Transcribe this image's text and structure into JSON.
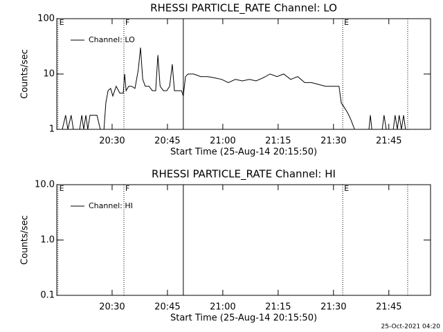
{
  "chart_data": [
    {
      "type": "line",
      "title": "RHESSI PARTICLE_RATE Channel: LO",
      "xlabel": "Start Time (25-Aug-14 20:15:50)",
      "ylabel": "Counts/sec",
      "ylog": true,
      "xlim": [
        15,
        116.3
      ],
      "xticks": [
        {
          "value": 30,
          "label": "20:30"
        },
        {
          "value": 45,
          "label": "20:45"
        },
        {
          "value": 60,
          "label": "21:00"
        },
        {
          "value": 75,
          "label": "21:15"
        },
        {
          "value": 90,
          "label": "21:30"
        },
        {
          "value": 105,
          "label": "21:45"
        }
      ],
      "ylim": [
        1,
        100
      ],
      "yticks": [
        1,
        10,
        100
      ],
      "vlines": [
        {
          "x": 15.3,
          "label": "E",
          "style": "dotted"
        },
        {
          "x": 33.2,
          "label": "F",
          "style": "dotted"
        },
        {
          "x": 49.3,
          "style": "solid"
        },
        {
          "x": 92.5,
          "label": "E",
          "style": "dotted"
        },
        {
          "x": 110.1,
          "style": "dotted"
        }
      ],
      "series": [
        {
          "name": "Channel: LO",
          "color": "#000000",
          "x": [
            16.5,
            17.4,
            18.0,
            18.9,
            19.5,
            21.2,
            21.8,
            22.3,
            22.9,
            23.4,
            24.0,
            24.9,
            25.9,
            26.8,
            27.8,
            28.3,
            28.9,
            29.6,
            30.2,
            31.1,
            32.1,
            33.0,
            33.4,
            33.8,
            34.5,
            35.3,
            36.2,
            37.1,
            37.7,
            38.3,
            39.0,
            40.0,
            40.9,
            41.8,
            42.4,
            43.0,
            43.9,
            44.8,
            45.6,
            46.3,
            46.9,
            47.8,
            48.8,
            49.3,
            49.9,
            50.6,
            52.1,
            54.0,
            55.9,
            57.8,
            59.7,
            61.5,
            63.4,
            65.3,
            67.2,
            69.0,
            70.9,
            72.8,
            74.7,
            76.5,
            78.4,
            80.3,
            82.2,
            84.0,
            85.9,
            87.8,
            89.7,
            91.5,
            92.1,
            92.9,
            93.8,
            94.7,
            95.7,
            96.4,
            98.0,
            99.6,
            100.0,
            100.4,
            102.0,
            103.2,
            103.7,
            104.3,
            106.2,
            106.7,
            107.3,
            107.8,
            108.4,
            109.0,
            109.5
          ],
          "values": [
            1,
            1.8,
            1,
            1.8,
            1,
            1,
            1.8,
            1,
            1.8,
            1,
            1.8,
            1.8,
            1.8,
            1,
            1,
            3,
            5,
            5.5,
            4,
            6,
            4.5,
            4.5,
            10,
            5,
            6,
            6,
            5.5,
            12,
            30,
            8,
            6,
            6,
            5,
            5,
            22,
            6,
            5,
            5,
            6,
            15,
            5,
            5,
            5,
            4,
            9,
            10,
            10,
            9,
            9,
            8.5,
            8,
            7,
            8,
            7.5,
            8,
            7.5,
            8.5,
            10,
            9,
            10,
            8,
            9,
            7,
            7,
            6.5,
            6,
            6,
            6,
            3,
            2.5,
            2,
            1.5,
            1,
            1,
            null,
            1,
            1.8,
            1,
            null,
            1,
            1.8,
            1,
            1,
            1.8,
            1,
            1.8,
            1,
            1.8,
            1
          ]
        }
      ]
    },
    {
      "type": "line",
      "title": "RHESSI PARTICLE_RATE Channel: HI",
      "xlabel": "Start Time (25-Aug-14 20:15:50)",
      "ylabel": "Counts/sec",
      "ylog": true,
      "xlim": [
        15,
        116.3
      ],
      "xticks": [
        {
          "value": 30,
          "label": "20:30"
        },
        {
          "value": 45,
          "label": "20:45"
        },
        {
          "value": 60,
          "label": "21:00"
        },
        {
          "value": 75,
          "label": "21:15"
        },
        {
          "value": 90,
          "label": "21:30"
        },
        {
          "value": 105,
          "label": "21:45"
        }
      ],
      "ylim": [
        0.1,
        10
      ],
      "yticks": [
        0.1,
        {
          "value": 1,
          "label": "1.0"
        },
        {
          "value": 10,
          "label": "10.0"
        }
      ],
      "vlines": [
        {
          "x": 15.3,
          "label": "E",
          "style": "dotted"
        },
        {
          "x": 33.2,
          "label": "F",
          "style": "dotted"
        },
        {
          "x": 49.3,
          "style": "solid"
        },
        {
          "x": 92.5,
          "label": "E",
          "style": "dotted"
        },
        {
          "x": 110.1,
          "style": "dotted"
        }
      ],
      "series": [
        {
          "name": "Channel: HI",
          "color": "#000000",
          "x": [],
          "values": []
        }
      ]
    }
  ],
  "footer": "25-Oct-2021 04:20"
}
